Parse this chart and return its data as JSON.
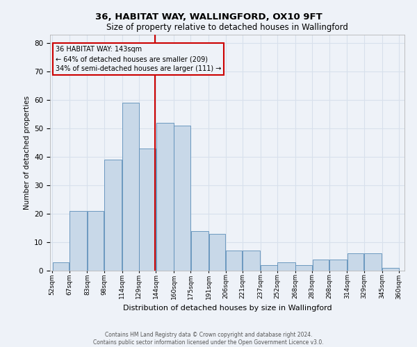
{
  "title1": "36, HABITAT WAY, WALLINGFORD, OX10 9FT",
  "title2": "Size of property relative to detached houses in Wallingford",
  "xlabel": "Distribution of detached houses by size in Wallingford",
  "ylabel": "Number of detached properties",
  "annotation_line1": "36 HABITAT WAY: 143sqm",
  "annotation_line2": "← 64% of detached houses are smaller (209)",
  "annotation_line3": "34% of semi-detached houses are larger (111) →",
  "footer1": "Contains HM Land Registry data © Crown copyright and database right 2024.",
  "footer2": "Contains public sector information licensed under the Open Government Licence v3.0.",
  "bar_left_edges": [
    52,
    67,
    83,
    98,
    114,
    129,
    144,
    160,
    175,
    191,
    206,
    221,
    237,
    252,
    268,
    283,
    298,
    314,
    329,
    345
  ],
  "bar_widths": [
    15,
    16,
    15,
    16,
    15,
    15,
    16,
    15,
    16,
    15,
    15,
    16,
    15,
    16,
    15,
    15,
    16,
    15,
    16,
    15
  ],
  "bar_heights": [
    3,
    21,
    21,
    39,
    59,
    43,
    52,
    51,
    14,
    13,
    7,
    7,
    2,
    3,
    2,
    4,
    4,
    6,
    6,
    1
  ],
  "property_size": 143,
  "bar_color": "#c8d8e8",
  "bar_edge_color": "#5b8db8",
  "vline_color": "#cc0000",
  "annotation_box_edge": "#cc0000",
  "grid_color": "#d8e0ec",
  "bg_color": "#eef2f8",
  "ylim": [
    0,
    83
  ],
  "yticks": [
    0,
    10,
    20,
    30,
    40,
    50,
    60,
    70,
    80
  ]
}
